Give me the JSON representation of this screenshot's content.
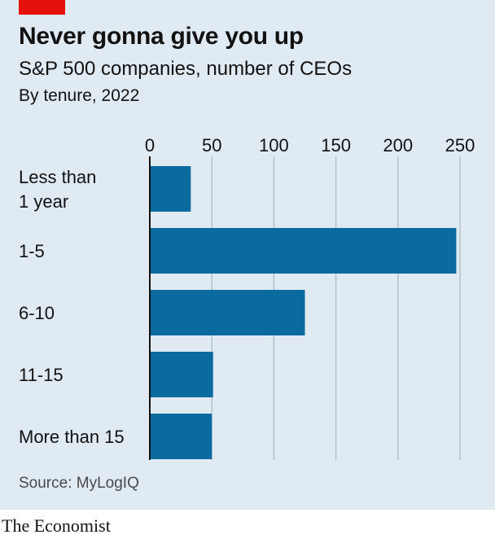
{
  "header": {
    "title": "Never gonna give you up",
    "subtitle": "S&P 500 companies, number of CEOs",
    "subtitle2": "By tenure, 2022"
  },
  "footer": {
    "source": "Source: MyLogIQ",
    "brand": "The Economist"
  },
  "colors": {
    "bar": "#0b6a9e",
    "background": "#dfeaf2",
    "gridline": "#b3c1cc",
    "axis": "#121212",
    "brand_red": "#e3120b"
  },
  "chart_data": {
    "type": "bar",
    "orientation": "horizontal",
    "title": "Never gonna give you up",
    "subtitle": "S&P 500 companies, number of CEOs",
    "xlabel": "",
    "ylabel": "",
    "categories": [
      [
        "Less than",
        "1 year"
      ],
      [
        "1-5"
      ],
      [
        "6-10"
      ],
      [
        "11-15"
      ],
      [
        "More than 15"
      ]
    ],
    "values": [
      33,
      247,
      125,
      51,
      50
    ],
    "ticks": [
      0,
      50,
      100,
      150,
      200,
      250
    ],
    "xlim": [
      0,
      250
    ],
    "grid": true,
    "legend": "none"
  }
}
